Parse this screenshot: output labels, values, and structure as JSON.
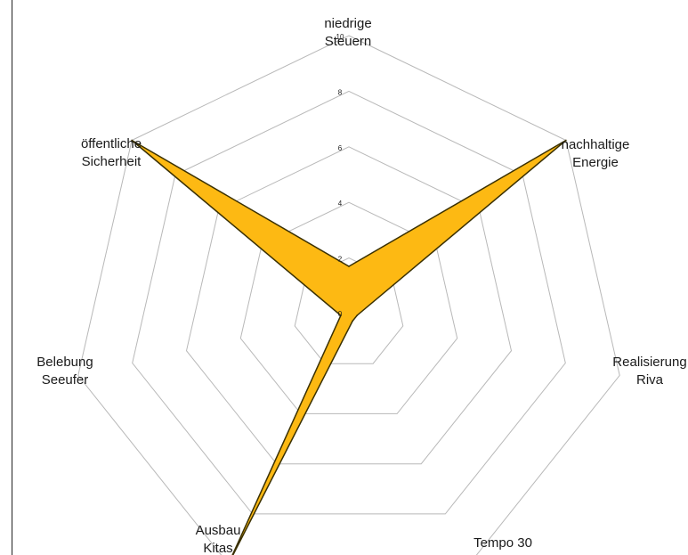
{
  "chart_data": {
    "type": "radar",
    "categories": [
      [
        "niedrige",
        "Steuern"
      ],
      [
        "nachhaltige",
        "Energie"
      ],
      [
        "Realisierung",
        "Riva"
      ],
      [
        "Tempo 30"
      ],
      [
        "Ausbau",
        "Kitas"
      ],
      [
        "Belebung",
        "Seeufer"
      ],
      [
        "öffentliche",
        "Sicherheit"
      ]
    ],
    "series": [
      {
        "values": [
          1.7,
          10,
          0.3,
          0.3,
          10,
          0.3,
          10
        ]
      }
    ],
    "rlim": [
      0,
      10
    ],
    "ticks": [
      "0",
      "2",
      "4",
      "6",
      "8",
      "10"
    ],
    "grid": true,
    "colors": {
      "fill": "#FDB913",
      "stroke": "#3a3000",
      "grid": "#b8b8b8"
    }
  }
}
